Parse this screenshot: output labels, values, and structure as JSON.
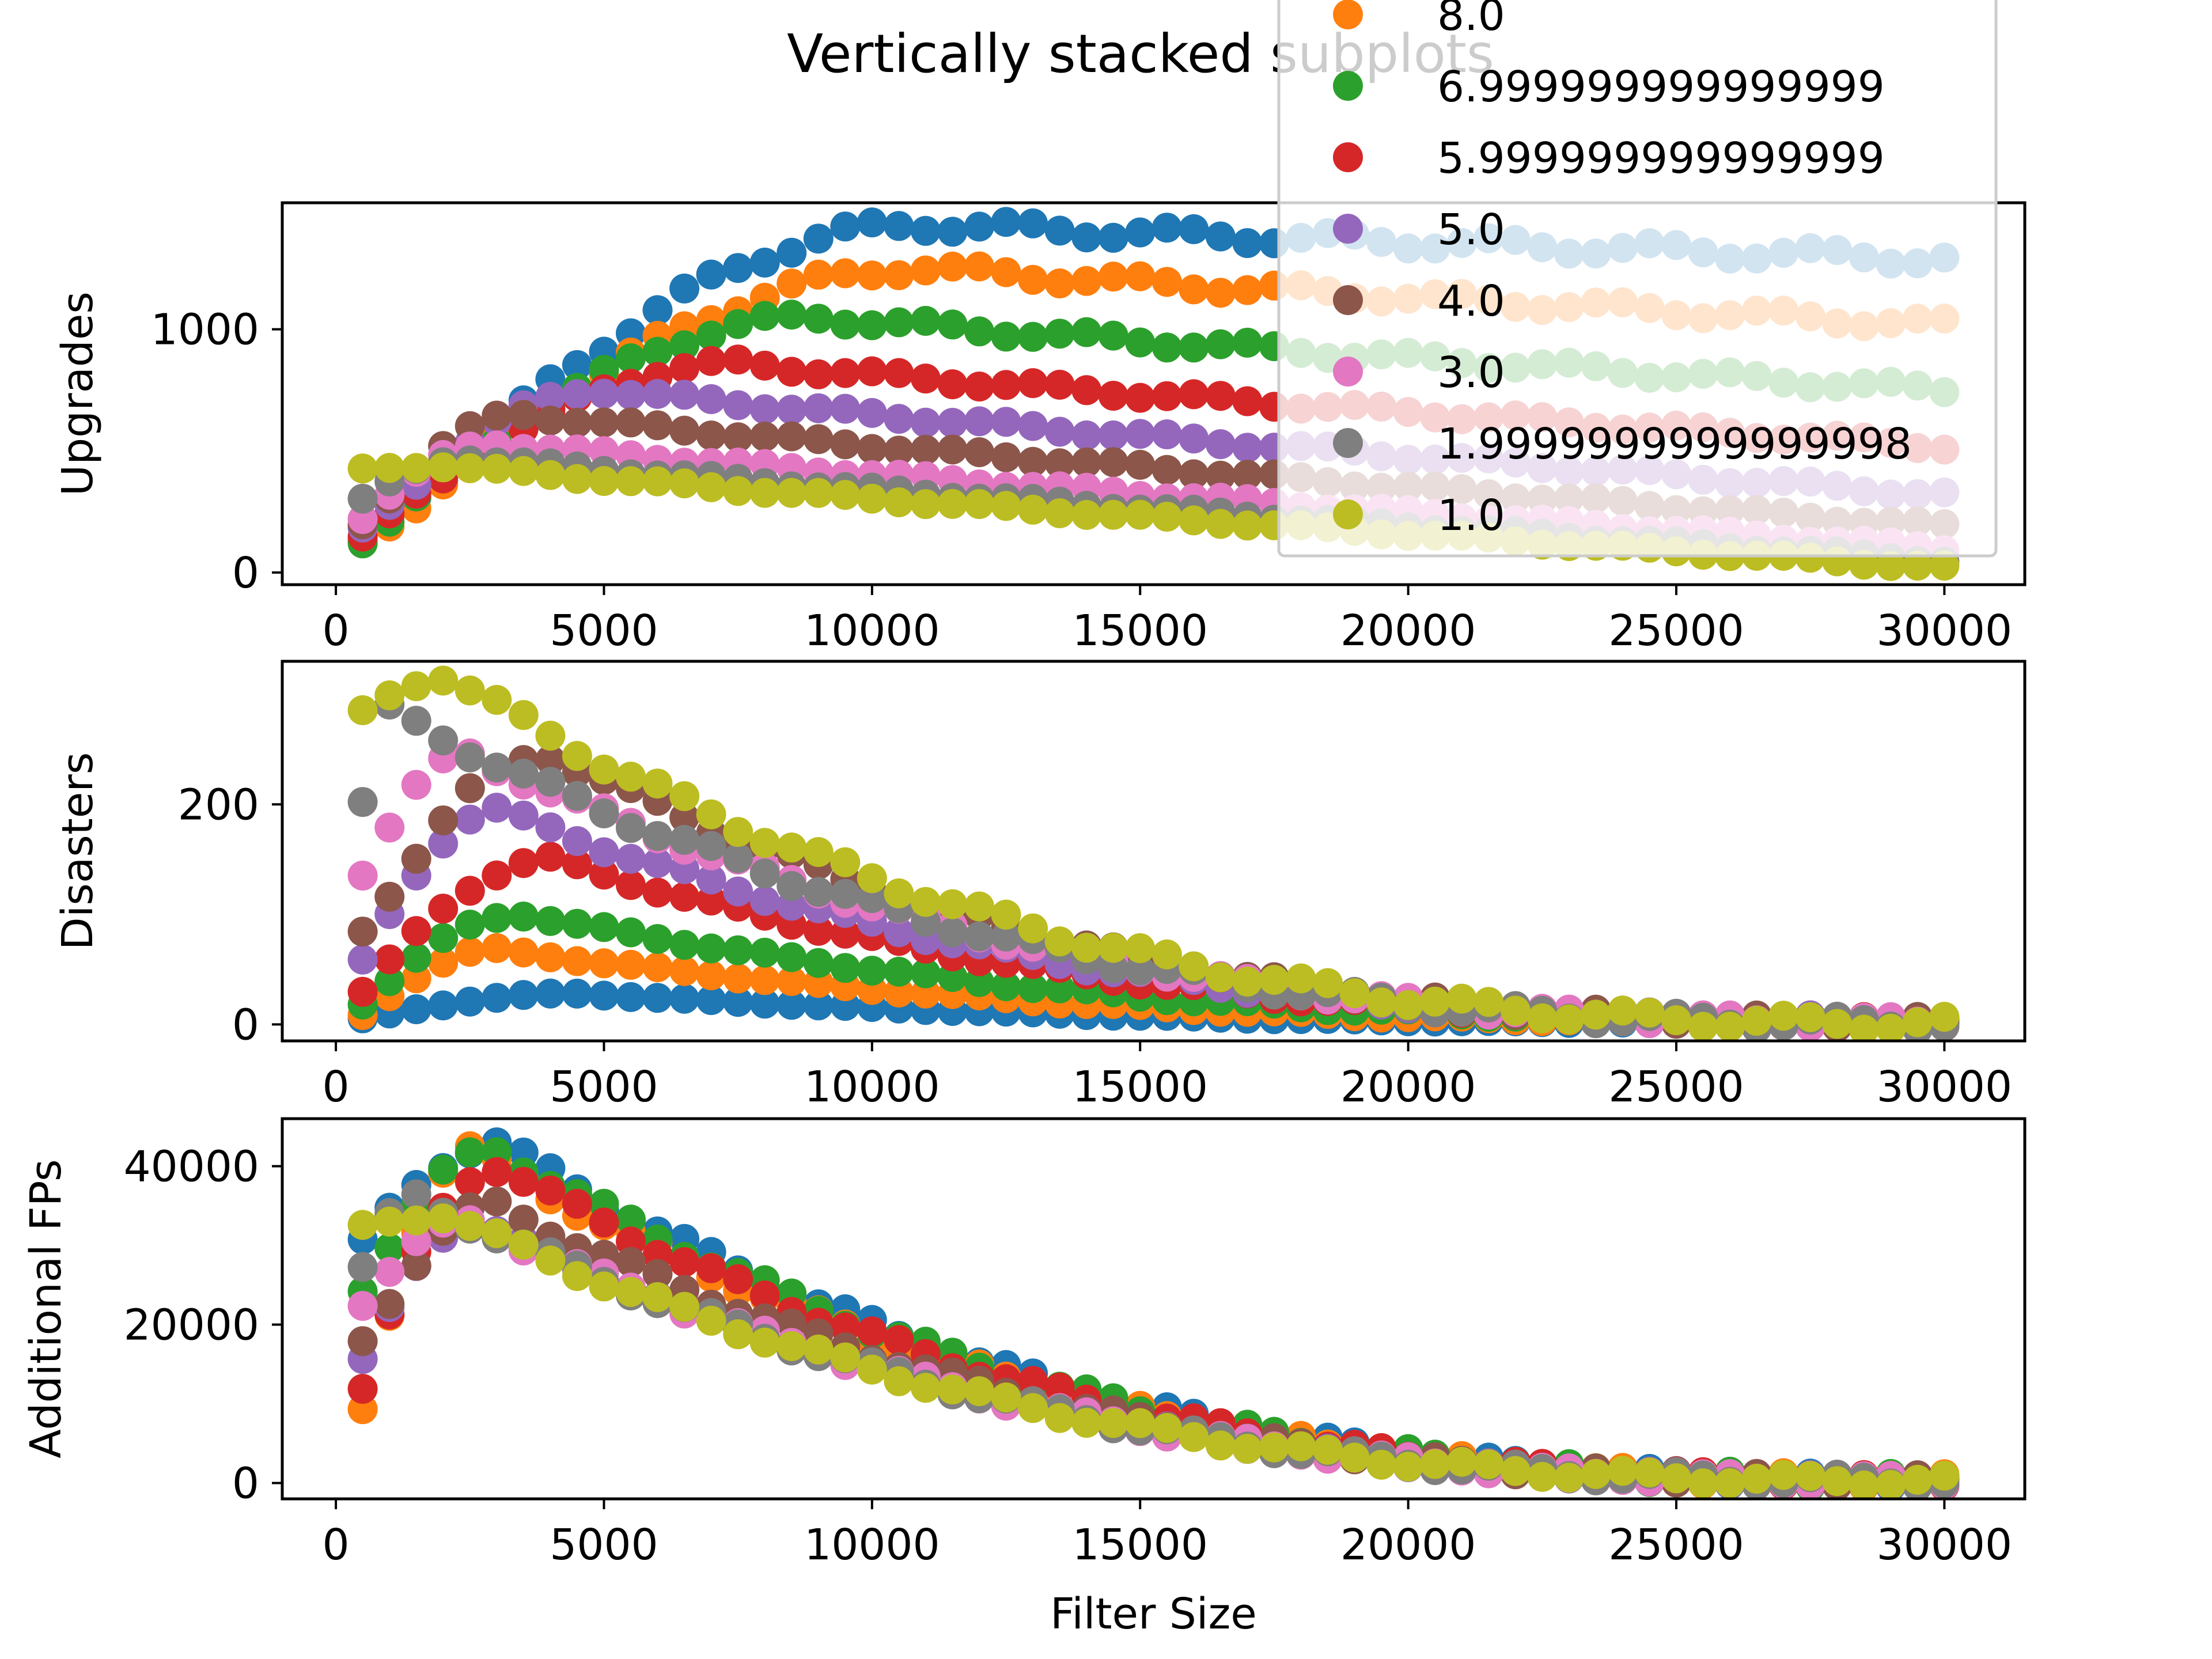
{
  "figure": {
    "title": "Vertically stacked subplots"
  },
  "colors": {
    "8.0": "#ff7f0e",
    "6.999999999999999": "#2ca02c",
    "5.999999999999999": "#d62728",
    "5.0": "#9467bd",
    "4.0": "#8c564b",
    "3.0": "#e377c2",
    "1.9999999999999998": "#7f7f7f",
    "1.0": "#bcbd22",
    "top_series": "#1f77b4"
  },
  "legend": {
    "placement": "top-right (overlapping first subplot, clipped at top)",
    "entries": [
      "8.0",
      "6.999999999999999",
      "5.999999999999999",
      "5.0",
      "4.0",
      "3.0",
      "1.9999999999999998",
      "1.0"
    ]
  },
  "chart_data": [
    {
      "type": "scatter",
      "ylabel": "Upgrades",
      "xlabel": "",
      "xlim": [
        -1000,
        31500
      ],
      "ylim": [
        -50,
        1520
      ],
      "xticks": [
        "0",
        "5000",
        "10000",
        "15000",
        "20000",
        "25000",
        "30000"
      ],
      "yticks": [
        "0",
        "1000"
      ],
      "x": {
        "start": 500,
        "stop": 30000,
        "step": 500
      },
      "series": [
        {
          "color": "#1f77b4",
          "shape": "rise-plateau",
          "start": 110,
          "peak": 1430,
          "peak_x": 11000,
          "end": 1290
        },
        {
          "name": "8.0",
          "shape": "rise-plateau",
          "start": 120,
          "peak": 1250,
          "peak_x": 11000,
          "end": 1020
        },
        {
          "name": "6.999999999999999",
          "shape": "rise-plateau",
          "start": 140,
          "peak": 1050,
          "peak_x": 9000,
          "end": 750
        },
        {
          "name": "5.999999999999999",
          "shape": "rise-plateau",
          "start": 150,
          "peak": 860,
          "peak_x": 7500,
          "end": 520
        },
        {
          "name": "5.0",
          "shape": "rise-plateau",
          "start": 170,
          "peak": 750,
          "peak_x": 5000,
          "end": 320
        },
        {
          "name": "4.0",
          "shape": "rise-plateau",
          "start": 200,
          "peak": 650,
          "peak_x": 3500,
          "end": 190
        },
        {
          "name": "3.0",
          "shape": "rise-plateau",
          "start": 230,
          "peak": 530,
          "peak_x": 3000,
          "end": 100
        },
        {
          "name": "1.9999999999999998",
          "shape": "rise-plateau",
          "start": 300,
          "peak": 470,
          "peak_x": 2500,
          "end": 50
        },
        {
          "name": "1.0",
          "shape": "rise-plateau",
          "start": 420,
          "peak": 440,
          "peak_x": 2000,
          "end": 20
        }
      ]
    },
    {
      "type": "scatter",
      "ylabel": "Disasters",
      "xlabel": "",
      "xlim": [
        -1000,
        31500
      ],
      "ylim": [
        -15,
        330
      ],
      "xticks": [
        "0",
        "5000",
        "10000",
        "15000",
        "20000",
        "25000",
        "30000"
      ],
      "yticks": [
        "0",
        "200"
      ],
      "x": {
        "start": 500,
        "stop": 30000,
        "step": 500
      },
      "series": [
        {
          "color": "#1f77b4",
          "shape": "hump",
          "start": 5,
          "peak": 28,
          "peak_x": 4500,
          "end": 1
        },
        {
          "name": "8.0",
          "shape": "hump",
          "start": 8,
          "peak": 68,
          "peak_x": 3000,
          "end": 2
        },
        {
          "name": "6.999999999999999",
          "shape": "hump",
          "start": 20,
          "peak": 100,
          "peak_x": 3500,
          "end": 4
        },
        {
          "name": "5.999999999999999",
          "shape": "hump",
          "start": 30,
          "peak": 150,
          "peak_x": 4000,
          "end": 4
        },
        {
          "name": "5.0",
          "shape": "hump",
          "start": 55,
          "peak": 195,
          "peak_x": 3000,
          "end": 4
        },
        {
          "name": "4.0",
          "shape": "hump",
          "start": 85,
          "peak": 245,
          "peak_x": 4000,
          "end": 2
        },
        {
          "name": "3.0",
          "shape": "hump",
          "start": 140,
          "peak": 245,
          "peak_x": 2500,
          "end": 2
        },
        {
          "name": "1.9999999999999998",
          "shape": "hump",
          "start": 200,
          "peak": 285,
          "peak_x": 1000,
          "end": 1
        },
        {
          "name": "1.0",
          "shape": "hump",
          "start": 280,
          "peak": 318,
          "peak_x": 2000,
          "end": 1
        }
      ]
    },
    {
      "type": "scatter",
      "ylabel": "Additional FPs",
      "xlabel": "Filter Size",
      "xlim": [
        -1000,
        31500
      ],
      "ylim": [
        -2000,
        46000
      ],
      "xticks": [
        "0",
        "5000",
        "10000",
        "15000",
        "20000",
        "25000",
        "30000"
      ],
      "yticks": [
        "0",
        "20000",
        "40000"
      ],
      "x": {
        "start": 500,
        "stop": 30000,
        "step": 500
      },
      "series": [
        {
          "color": "#1f77b4",
          "shape": "hump",
          "start": 30000,
          "peak": 43000,
          "peak_x": 3000,
          "end": 300
        },
        {
          "name": "8.0",
          "shape": "hump",
          "start": 9000,
          "peak": 42000,
          "peak_x": 2500,
          "end": 300
        },
        {
          "name": "6.999999999999999",
          "shape": "hump",
          "start": 25000,
          "peak": 42000,
          "peak_x": 3000,
          "end": 300
        },
        {
          "name": "5.999999999999999",
          "shape": "hump",
          "start": 12000,
          "peak": 40000,
          "peak_x": 3000,
          "end": 300
        },
        {
          "name": "5.0",
          "shape": "hump",
          "start": 15000,
          "peak": 33000,
          "peak_x": 2500,
          "end": 300
        },
        {
          "name": "4.0",
          "shape": "hump",
          "start": 18000,
          "peak": 35000,
          "peak_x": 3000,
          "end": 300
        },
        {
          "name": "3.0",
          "shape": "hump",
          "start": 23000,
          "peak": 33000,
          "peak_x": 2500,
          "end": 300
        },
        {
          "name": "1.9999999999999998",
          "shape": "hump",
          "start": 27000,
          "peak": 36000,
          "peak_x": 1500,
          "end": 300
        },
        {
          "name": "1.0",
          "shape": "hump",
          "start": 32000,
          "peak": 34000,
          "peak_x": 2000,
          "end": 300
        }
      ]
    }
  ]
}
